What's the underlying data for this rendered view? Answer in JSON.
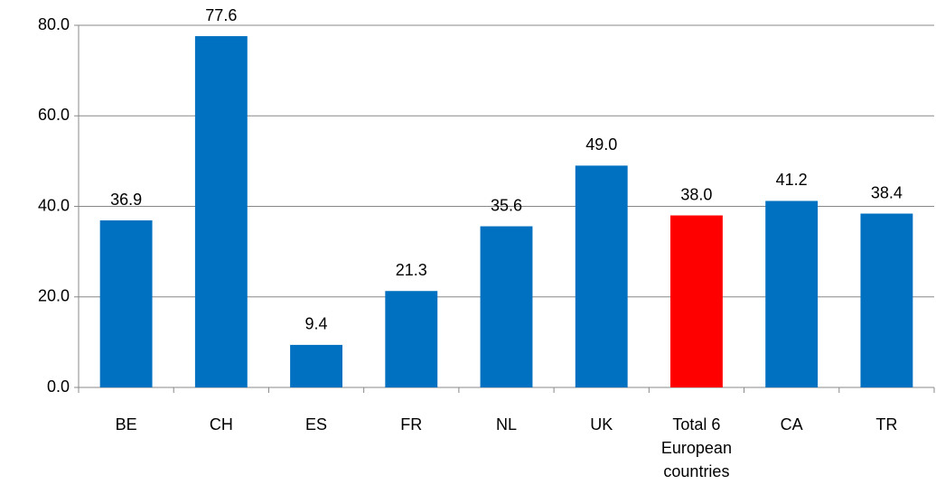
{
  "chart_data": {
    "type": "bar",
    "categories": [
      "BE",
      "CH",
      "ES",
      "FR",
      "NL",
      "UK",
      "Total 6 European countries",
      "CA",
      "TR"
    ],
    "values": [
      36.9,
      77.6,
      9.4,
      21.3,
      35.6,
      49.0,
      38.0,
      41.2,
      38.4
    ],
    "value_labels": [
      "36.9",
      "77.6",
      "9.4",
      "21.3",
      "35.6",
      "49.0",
      "38.0",
      "41.2",
      "38.4"
    ],
    "colors": [
      "#0070c0",
      "#0070c0",
      "#0070c0",
      "#0070c0",
      "#0070c0",
      "#0070c0",
      "#ff0000",
      "#0070c0",
      "#0070c0"
    ],
    "ylim": [
      0,
      80
    ],
    "yticks": [
      {
        "value": 0,
        "label": "0.0"
      },
      {
        "value": 20,
        "label": "20.0"
      },
      {
        "value": 40,
        "label": "40.0"
      },
      {
        "value": 60,
        "label": "60.0"
      },
      {
        "value": 80,
        "label": "80.0"
      }
    ],
    "grid": true
  }
}
